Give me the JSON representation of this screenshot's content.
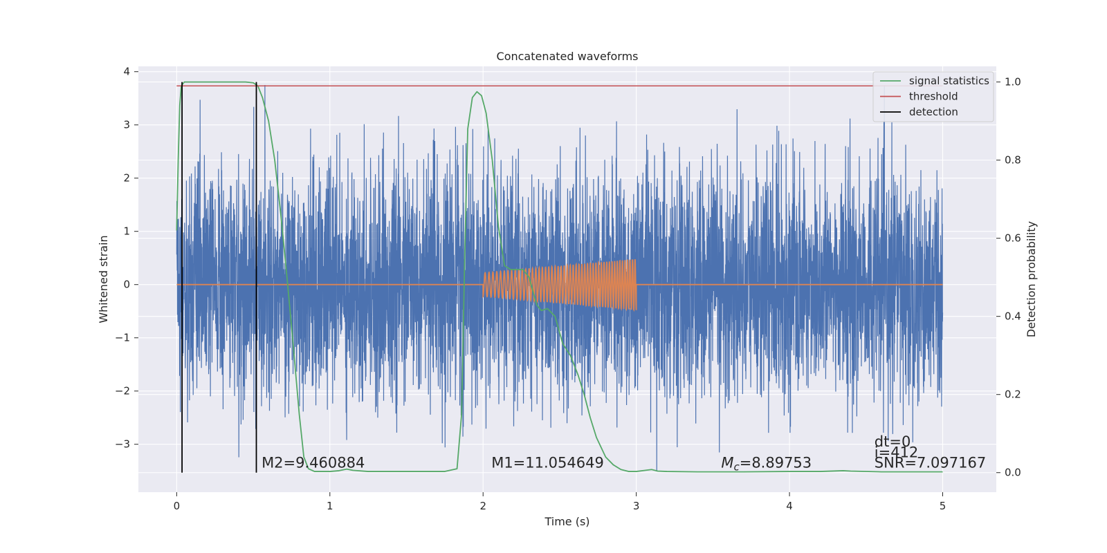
{
  "chart_data": {
    "type": "line",
    "title": "Concatenated waveforms",
    "xlabel": "Time (s)",
    "ylabel_left": "Whitened strain",
    "ylabel_right": "Detection probability",
    "xlim": [
      -0.25,
      5.35
    ],
    "ylim_left": [
      -3.9,
      4.1
    ],
    "ylim_right": [
      -0.05,
      1.04
    ],
    "xticks": [
      0,
      1,
      2,
      3,
      4,
      5
    ],
    "xtick_labels": [
      "0",
      "1",
      "2",
      "3",
      "4",
      "5"
    ],
    "yticks_left": [
      -3,
      -2,
      -1,
      0,
      1,
      2,
      3,
      4
    ],
    "ytick_labels_left": [
      "−3",
      "−2",
      "−1",
      "0",
      "1",
      "2",
      "3",
      "4"
    ],
    "yticks_right": [
      0.0,
      0.2,
      0.4,
      0.6,
      0.8,
      1.0
    ],
    "ytick_labels_right": [
      "0.0",
      "0.2",
      "0.4",
      "0.6",
      "0.8",
      "1.0"
    ],
    "grid": true,
    "legend_position": "top-right",
    "legend": [
      "signal statistics",
      "threshold",
      "detection"
    ],
    "series": [
      {
        "name": "strain",
        "axis": "left",
        "color": "#4c72b0",
        "x_range": [
          0,
          5
        ],
        "amplitude_std": 1.05,
        "y_range": [
          -3.5,
          3.75
        ]
      },
      {
        "name": "waveform",
        "axis": "left",
        "color": "#dd8452",
        "baseline": 0,
        "chirp_x_range": [
          2.0,
          3.0
        ],
        "chirp_amplitude": [
          0.22,
          0.48
        ]
      },
      {
        "name": "signal statistics",
        "axis": "right",
        "color": "#55a868",
        "x": [
          0.0,
          0.01,
          0.02,
          0.03,
          0.05,
          0.08,
          0.15,
          0.3,
          0.45,
          0.5,
          0.53,
          0.56,
          0.6,
          0.64,
          0.68,
          0.72,
          0.76,
          0.8,
          0.83,
          0.86,
          0.9,
          1.0,
          1.06,
          1.11,
          1.15,
          1.25,
          1.4,
          1.6,
          1.75,
          1.83,
          1.86,
          1.88,
          1.9,
          1.93,
          1.96,
          1.99,
          2.02,
          2.06,
          2.1,
          2.14,
          2.18,
          2.22,
          2.26,
          2.3,
          2.35,
          2.38,
          2.42,
          2.47,
          2.52,
          2.57,
          2.62,
          2.66,
          2.7,
          2.74,
          2.8,
          2.85,
          2.9,
          2.95,
          3.0,
          3.06,
          3.1,
          3.14,
          3.2,
          3.4,
          3.7,
          4.0,
          4.2,
          4.35,
          4.4,
          4.6,
          4.8,
          5.0
        ],
        "y": [
          0.62,
          0.8,
          0.94,
          0.99,
          1.0,
          1.0,
          1.0,
          1.0,
          1.0,
          0.998,
          0.99,
          0.96,
          0.9,
          0.8,
          0.66,
          0.5,
          0.33,
          0.15,
          0.04,
          0.01,
          0.003,
          0.003,
          0.005,
          0.009,
          0.006,
          0.003,
          0.003,
          0.003,
          0.003,
          0.01,
          0.15,
          0.55,
          0.88,
          0.96,
          0.975,
          0.965,
          0.92,
          0.8,
          0.63,
          0.53,
          0.52,
          0.52,
          0.52,
          0.5,
          0.43,
          0.415,
          0.42,
          0.4,
          0.33,
          0.3,
          0.25,
          0.2,
          0.14,
          0.09,
          0.04,
          0.02,
          0.008,
          0.003,
          0.003,
          0.006,
          0.008,
          0.004,
          0.003,
          0.002,
          0.002,
          0.003,
          0.003,
          0.005,
          0.004,
          0.002,
          0.002,
          0.002
        ]
      },
      {
        "name": "threshold",
        "axis": "right",
        "color": "#c44e52",
        "x": [
          0.0,
          5.0
        ],
        "y": [
          0.99,
          0.99
        ]
      },
      {
        "name": "detection",
        "axis": "right",
        "color": "#000000",
        "type": "vlines",
        "x": [
          0.035,
          0.52
        ],
        "y_range": [
          0.0,
          1.0
        ]
      }
    ],
    "annotations": [
      {
        "text": "M2=9.460884",
        "x": 0.5,
        "y": -3.35
      },
      {
        "text": "M1=11.054649",
        "x": 2.0,
        "y": -3.35
      },
      {
        "text": "Mc=8.89753",
        "math": true,
        "x": 3.5,
        "y": -3.35
      },
      {
        "text": "dt=0",
        "x": 4.5,
        "y": -2.95
      },
      {
        "text": "i=412",
        "x": 4.5,
        "y": -3.15
      },
      {
        "text": "SNR=7.097167",
        "x": 4.5,
        "y": -3.35
      }
    ]
  }
}
